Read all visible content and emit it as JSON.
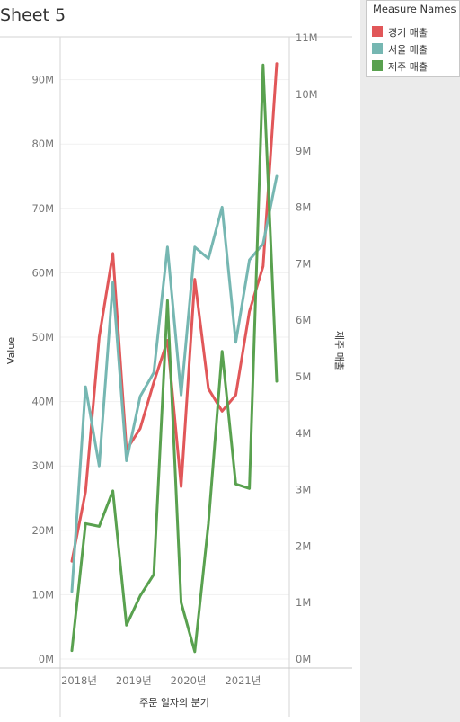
{
  "sheet": {
    "title": "Sheet 5"
  },
  "legend": {
    "title": "Measure Names",
    "items": [
      {
        "label": "경기 매출",
        "color": "#e15759"
      },
      {
        "label": "서울 매출",
        "color": "#76b7b2"
      },
      {
        "label": "제주 매출",
        "color": "#59a14f"
      }
    ]
  },
  "chart_data": {
    "type": "line",
    "xlabel": "주문 일자의 분기",
    "ylabel": "Value",
    "y2label": "제주 매출",
    "x_ticks": [
      "2018년",
      "2019년",
      "2020년",
      "2021년"
    ],
    "y_ticks": [
      "0M",
      "10M",
      "20M",
      "30M",
      "40M",
      "50M",
      "60M",
      "70M",
      "80M",
      "90M"
    ],
    "y2_ticks": [
      "0M",
      "1M",
      "2M",
      "3M",
      "4M",
      "5M",
      "6M",
      "7M",
      "8M",
      "9M",
      "10M",
      "11M"
    ],
    "ylim": [
      0,
      97.5
    ],
    "y2lim": [
      0,
      11.2
    ],
    "unit": "M",
    "x": [
      "2018 Q1",
      "2018 Q2",
      "2018 Q3",
      "2018 Q4",
      "2019 Q1",
      "2019 Q2",
      "2019 Q3",
      "2019 Q4",
      "2020 Q1",
      "2020 Q2",
      "2020 Q3",
      "2020 Q4",
      "2021 Q1",
      "2021 Q2",
      "2021 Q3",
      "2021 Q4"
    ],
    "series": [
      {
        "name": "경기 매출",
        "axis": "left",
        "color": "#e15759",
        "values": [
          15.2,
          26.0,
          50.0,
          63.0,
          32.5,
          35.8,
          43.0,
          49.5,
          26.8,
          59.0,
          42.0,
          38.5,
          41.0,
          54.0,
          61.0,
          92.5
        ]
      },
      {
        "name": "서울 매출",
        "axis": "left",
        "color": "#76b7b2",
        "values": [
          10.5,
          42.3,
          30.0,
          58.5,
          30.8,
          40.8,
          44.5,
          64.0,
          41.0,
          64.0,
          62.2,
          70.2,
          49.2,
          62.0,
          64.5,
          75.0
        ]
      },
      {
        "name": "제주 매출",
        "axis": "right",
        "color": "#59a14f",
        "values": [
          0.15,
          2.4,
          2.35,
          2.98,
          0.6,
          1.12,
          1.5,
          6.35,
          1.0,
          0.13,
          2.4,
          5.45,
          3.1,
          3.02,
          10.52,
          4.92
        ]
      }
    ],
    "grid": true,
    "legend_position": "top-right"
  }
}
